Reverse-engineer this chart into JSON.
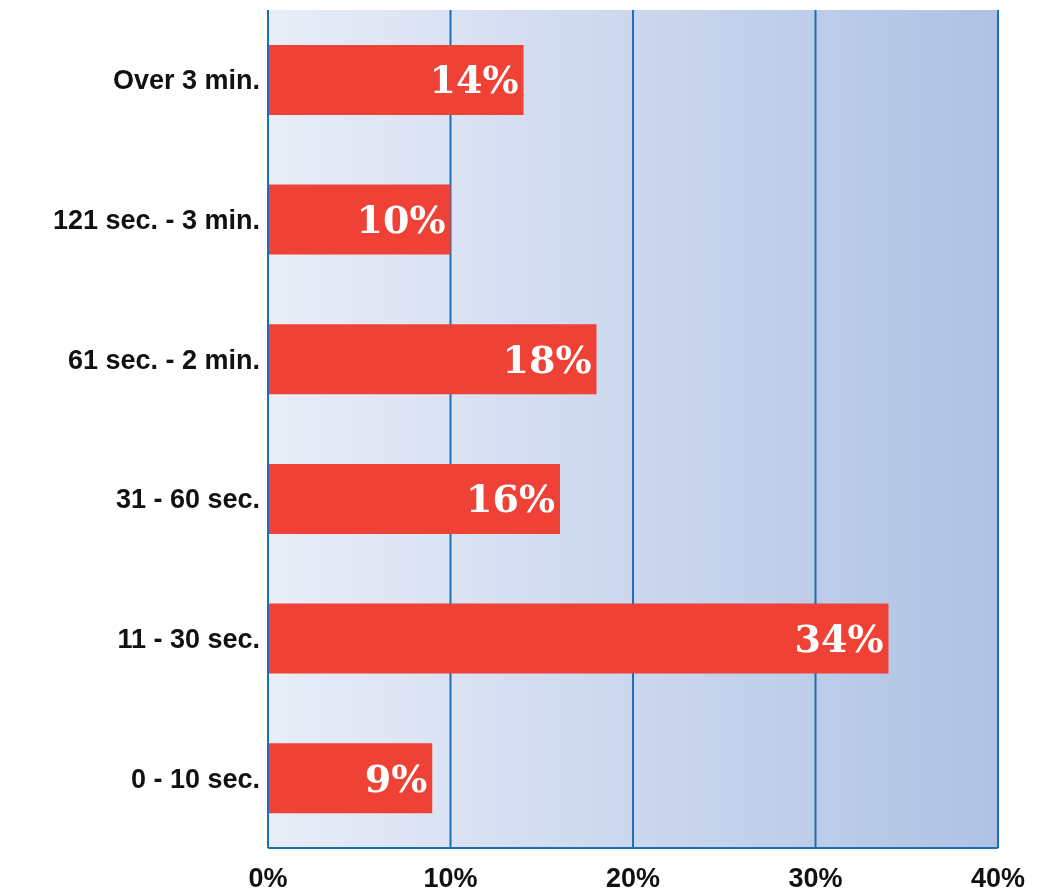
{
  "chart_data": {
    "type": "bar",
    "orientation": "horizontal",
    "categories": [
      "Over 3 min.",
      "121 sec. - 3 min.",
      "61 sec. - 2 min.",
      "31 - 60 sec.",
      "11 - 30 sec.",
      "0 - 10 sec."
    ],
    "values": [
      14,
      10,
      18,
      16,
      34,
      9
    ],
    "value_labels": [
      "14%",
      "10%",
      "18%",
      "16%",
      "34%",
      "9%"
    ],
    "color": "#ef4135",
    "xlim": [
      0,
      40
    ],
    "xticks": [
      {
        "value": 0,
        "label": "0%"
      },
      {
        "value": 10,
        "label": "10%"
      },
      {
        "value": 20,
        "label": "20%"
      },
      {
        "value": 30,
        "label": "30%"
      },
      {
        "value": 40,
        "label": "40%"
      }
    ],
    "grid": "x"
  }
}
